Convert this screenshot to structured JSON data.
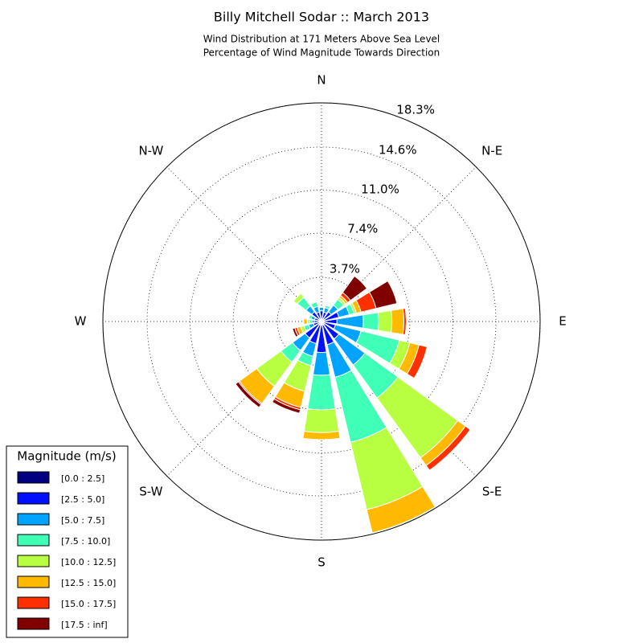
{
  "chart_data": {
    "type": "windrose",
    "title": "Billy Mitchell Sodar :: March 2013",
    "subtitle": [
      "Wind Distribution at 171 Meters Above Sea Level",
      "Percentage of Wind Magnitude Towards Direction"
    ],
    "categories": [
      "N",
      null,
      "N-E",
      null,
      "E",
      null,
      "S-E",
      null,
      "S",
      null,
      "S-W",
      null,
      "W",
      null,
      "N-W",
      null
    ],
    "rlim": [
      0,
      18.3
    ],
    "rticks": [
      {
        "value": 3.7,
        "label": "3.7%"
      },
      {
        "value": 7.4,
        "label": "7.4%"
      },
      {
        "value": 11.0,
        "label": "11.0%"
      },
      {
        "value": 14.6,
        "label": "14.6%"
      },
      {
        "value": 18.3,
        "label": "18.3%"
      }
    ],
    "grid": true,
    "legend_title": "Magnitude (m/s)",
    "legend_position": "lower left",
    "series": [
      {
        "name": "[0.0 : 2.5]",
        "color": "#000080",
        "values": [
          0.2,
          0.2,
          0.2,
          0.2,
          0.2,
          0.2,
          0.3,
          0.3,
          0.3,
          0.3,
          0.3,
          0.2,
          0.2,
          0.2,
          0.2,
          0.2
        ]
      },
      {
        "name": "[2.5 : 5.0]",
        "color": "#0010ff",
        "values": [
          0.7,
          0.6,
          0.8,
          1.3,
          1.1,
          1.0,
          1.5,
          1.7,
          2.3,
          1.6,
          1.4,
          0.5,
          0.4,
          0.4,
          0.8,
          0.6
        ]
      },
      {
        "name": "[5.0 : 7.5]",
        "color": "#00a4ff",
        "values": [
          0.3,
          0.4,
          0.7,
          0.9,
          2.2,
          2.2,
          2.7,
          2.8,
          1.9,
          1.1,
          1.3,
          0.4,
          0.2,
          0.3,
          0.6,
          0.5
        ]
      },
      {
        "name": "[7.5 : 10.0]",
        "color": "#40ffb7",
        "values": [
          0,
          0.2,
          0.6,
          0.4,
          1.3,
          3.3,
          3.4,
          5.6,
          2.9,
          0.8,
          1.2,
          0.4,
          0.2,
          0.2,
          0.9,
          0.4
        ]
      },
      {
        "name": "[10.0 : 12.5]",
        "color": "#b7ff40",
        "values": [
          0,
          0,
          0.2,
          0.2,
          1.1,
          0.9,
          6.2,
          5.8,
          1.9,
          2.2,
          2.5,
          0.3,
          0.2,
          0,
          0.4,
          0
        ]
      },
      {
        "name": "[12.5 : 15.0]",
        "color": "#ffb900",
        "values": [
          0,
          0,
          0.2,
          0.4,
          1.0,
          0.8,
          0.8,
          2.0,
          0.6,
          1.4,
          1.8,
          0.3,
          0.3,
          0,
          0,
          0
        ]
      },
      {
        "name": "[15.0 : 17.5]",
        "color": "#ff3000",
        "values": [
          0,
          0,
          0.3,
          1.3,
          0.2,
          0.7,
          0.5,
          0,
          0,
          0.2,
          0.1,
          0.2,
          0,
          0,
          0,
          0
        ]
      },
      {
        "name": "[17.5 : inf]",
        "color": "#800000",
        "values": [
          0,
          0,
          1.7,
          1.8,
          0,
          0,
          0,
          0,
          0,
          0.3,
          0.3,
          0.2,
          0,
          0,
          0,
          0
        ]
      }
    ]
  }
}
